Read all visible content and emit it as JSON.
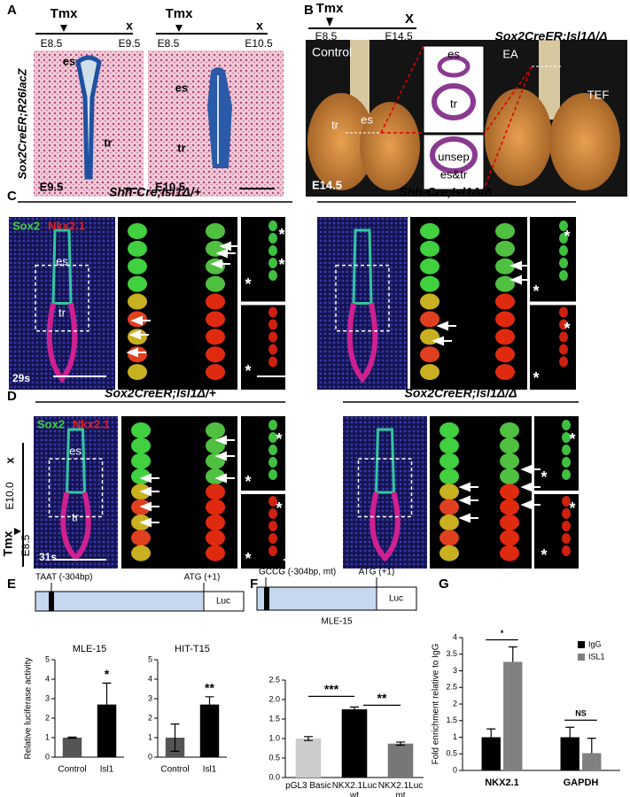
{
  "panels": {
    "A": {
      "label": "A",
      "timelines": [
        {
          "start_mark": "Tmx",
          "end_mark": "x",
          "start": "E8.5",
          "end": "E9.5"
        },
        {
          "start_mark": "Tmx",
          "end_mark": "x",
          "start": "E8.5",
          "end": "E10.5"
        }
      ],
      "genotype": "Sox2CreER;R26lacZ",
      "images": [
        {
          "labels": [
            "es",
            "tr"
          ],
          "stage": "E9.5"
        },
        {
          "labels": [
            "es",
            "tr"
          ],
          "stage": "E10.5"
        }
      ]
    },
    "B": {
      "label": "B",
      "timeline": {
        "start_mark": "Tmx",
        "end_mark": "X",
        "start": "E8.5",
        "end": "E14.5"
      },
      "control": "Control",
      "labels": [
        "es",
        "tr"
      ],
      "stage": "E14.5",
      "insets": [
        {
          "labels": [
            "es",
            "tr"
          ]
        },
        {
          "labels": [
            "unsep",
            "es&tr"
          ]
        }
      ],
      "mutant_title": "Sox2CreER;Isl1Δ/Δ",
      "mutant_labels": [
        "EA",
        "TEF"
      ]
    },
    "C": {
      "label": "C",
      "headers": [
        "Shh-Cre;Isl1Δ/+",
        "Shh-Cre;Isl1Δ/Δ"
      ],
      "stains": [
        "Sox2",
        "Nkx2.1"
      ],
      "labels": [
        "es",
        "tr"
      ],
      "stage": "29s",
      "asterisk": "*"
    },
    "D": {
      "label": "D",
      "headers": [
        "Sox2CreER;Isl1Δ/+",
        "Sox2CreER;Isl1Δ/Δ"
      ],
      "stains": [
        "Sox2",
        "Nkx2.1"
      ],
      "labels": [
        "es",
        "tr"
      ],
      "stage": "31s",
      "timeline": {
        "start_mark": "Tmx",
        "end_mark": "x",
        "start": "E8.5",
        "end": "E10.0"
      },
      "asterisk": "*"
    },
    "E": {
      "label": "E",
      "construct": {
        "site": "TAAT (-304bp)",
        "start": "ATG (+1)",
        "reporter": "Luc"
      }
    },
    "F": {
      "label": "F",
      "construct": {
        "site": "GCCG (-304bp, mt)",
        "start": "ATG (+1)",
        "reporter": "Luc"
      },
      "cell_line": "MLE-15"
    },
    "G": {
      "label": "G"
    }
  },
  "chart_data": [
    {
      "type": "bar",
      "title": "MLE-15",
      "ylabel": "Relative luciferase activity",
      "categories": [
        "Control",
        "Isl1"
      ],
      "values": [
        1.0,
        2.7
      ],
      "errors": [
        0.03,
        1.1
      ],
      "colors": [
        "#555555",
        "#000000"
      ],
      "error_bars": "both",
      "ylim": [
        0,
        5
      ],
      "yticks": [
        0,
        1,
        2,
        3,
        4,
        5
      ],
      "annotations": [
        "*"
      ]
    },
    {
      "type": "bar",
      "title": "HIT-T15",
      "categories": [
        "Control",
        "Isl1"
      ],
      "values": [
        1.0,
        2.7
      ],
      "errors": [
        0.7,
        0.4
      ],
      "colors": [
        "#555555",
        "#000000"
      ],
      "error_bars": "both",
      "ylim": [
        0,
        5
      ],
      "yticks": [
        0,
        1,
        2,
        3,
        4,
        5
      ],
      "annotations": [
        "**"
      ]
    },
    {
      "type": "bar",
      "categories": [
        "pGL3 Basic",
        "NKX2.1Luc wt",
        "NKX2.1Luc mt"
      ],
      "values": [
        1.0,
        1.75,
        0.87
      ],
      "errors": [
        0.05,
        0.06,
        0.04
      ],
      "colors": [
        "#cccccc",
        "#000000",
        "#777777"
      ],
      "error_bars": "both",
      "ylim": [
        0,
        2.5
      ],
      "yticks": [
        {
          "value": 0,
          "label": "0.0"
        },
        0.5,
        {
          "value": 1,
          "label": "1.0"
        },
        1.5,
        {
          "value": 2,
          "label": "2.0"
        },
        2.5
      ],
      "annotations": [
        "***",
        "**"
      ]
    },
    {
      "type": "bar",
      "ylabel": "Fold enrichment relative to IgG",
      "categories": [
        "NKX2.1",
        "GAPDH"
      ],
      "series": [
        {
          "name": "IgG",
          "color": "#000000",
          "values": [
            1.0,
            1.0
          ],
          "errors": [
            0.25,
            0.3
          ]
        },
        {
          "name": "ISL1",
          "color": "#808080",
          "values": [
            3.27,
            0.52
          ],
          "errors": [
            0.45,
            0.45
          ]
        }
      ],
      "error_bars": "up",
      "ylim": [
        0,
        4
      ],
      "yticks": [
        0,
        0.5,
        1,
        1.5,
        2,
        2.5,
        3,
        3.5,
        4
      ],
      "annotations": [
        "*",
        "NS"
      ],
      "legend": "upper right"
    }
  ]
}
